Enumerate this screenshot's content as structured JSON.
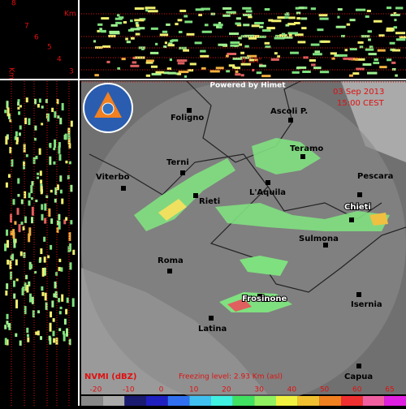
{
  "profile": {
    "unit": "Km",
    "heights": [
      "8",
      "7",
      "6",
      "5",
      "4",
      "3"
    ],
    "freezing_mark": "0 CA°"
  },
  "map": {
    "credit": "Powered by Himet",
    "date": "03 Sep 2013",
    "time": "15:00 CEST",
    "cities": [
      "Foligno",
      "Ascoli P.",
      "Teramo",
      "Terni",
      "Viterbo",
      "Pescara",
      "L'Aquila",
      "Rieti",
      "Chieti",
      "Sulmona",
      "Roma",
      "Frosinone",
      "Isernia",
      "Latina",
      "Capua"
    ]
  },
  "legend": {
    "title": "NVMI (dBZ)",
    "freezing_level": "Freezing level: 2.93 Km (asl)",
    "scale": [
      -20,
      -10,
      0,
      10,
      20,
      30,
      40,
      50,
      60,
      65
    ]
  }
}
